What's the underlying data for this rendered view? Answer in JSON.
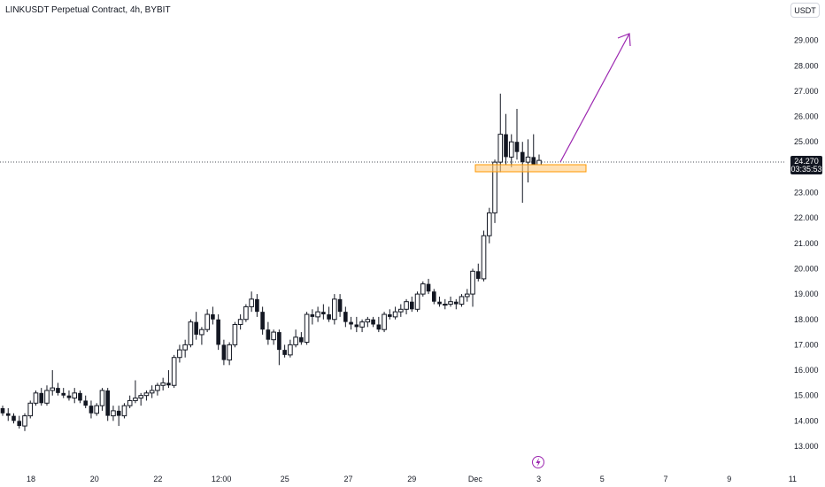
{
  "header": {
    "title": "LINKUSDT Perpetual Contract, 4h, BYBIT",
    "currency_button": "USDT"
  },
  "price_marker": {
    "price": "24.270",
    "countdown": "03:35:53",
    "color": "#131722"
  },
  "colors": {
    "candle": "#131722",
    "zone_fill": "#ffcc80",
    "zone_stroke": "#ff9800",
    "arrow": "#9c27b0",
    "bolt": "#9c27b0"
  },
  "icons": {
    "event_icon": "lightning-bolt-icon"
  },
  "chart_data": {
    "type": "candlestick",
    "symbol": "LINKUSDT",
    "interval": "4h",
    "exchange": "BYBIT",
    "y_range": [
      12.5,
      30.0
    ],
    "y_ticks": [
      "13.000",
      "14.000",
      "15.000",
      "16.000",
      "17.000",
      "18.000",
      "19.000",
      "20.000",
      "21.000",
      "22.000",
      "23.000",
      "24.000",
      "25.000",
      "26.000",
      "27.000",
      "28.000",
      "29.000"
    ],
    "x_ticks": [
      "18",
      "20",
      "22",
      "12:00",
      "25",
      "27",
      "29",
      "Dec",
      "3",
      "5",
      "7",
      "9",
      "11"
    ],
    "grid": false,
    "candles": [
      [
        14.5,
        14.6,
        14.2,
        14.3
      ],
      [
        14.3,
        14.5,
        14.0,
        14.2
      ],
      [
        14.2,
        14.3,
        13.9,
        14.0
      ],
      [
        14.0,
        14.2,
        13.7,
        13.8
      ],
      [
        13.8,
        14.3,
        13.6,
        14.2
      ],
      [
        14.2,
        14.8,
        14.1,
        14.7
      ],
      [
        14.7,
        15.2,
        14.6,
        15.1
      ],
      [
        15.1,
        15.3,
        14.6,
        14.7
      ],
      [
        14.7,
        15.4,
        14.6,
        15.2
      ],
      [
        15.2,
        16.0,
        15.0,
        15.3
      ],
      [
        15.3,
        15.5,
        15.0,
        15.1
      ],
      [
        15.1,
        15.3,
        14.9,
        15.0
      ],
      [
        15.0,
        15.2,
        14.8,
        14.9
      ],
      [
        14.9,
        15.3,
        14.7,
        15.1
      ],
      [
        15.1,
        15.2,
        14.7,
        14.8
      ],
      [
        14.8,
        15.0,
        14.5,
        14.6
      ],
      [
        14.6,
        14.8,
        14.1,
        14.3
      ],
      [
        14.3,
        14.7,
        14.2,
        14.6
      ],
      [
        14.6,
        15.3,
        14.4,
        15.2
      ],
      [
        15.2,
        15.3,
        14.0,
        14.2
      ],
      [
        14.2,
        14.6,
        14.0,
        14.4
      ],
      [
        14.4,
        14.6,
        13.8,
        14.2
      ],
      [
        14.2,
        14.7,
        14.1,
        14.6
      ],
      [
        14.6,
        15.0,
        14.5,
        14.8
      ],
      [
        14.8,
        15.6,
        14.7,
        14.9
      ],
      [
        14.9,
        15.1,
        14.6,
        15.0
      ],
      [
        15.0,
        15.2,
        14.8,
        15.1
      ],
      [
        15.1,
        15.4,
        14.9,
        15.2
      ],
      [
        15.2,
        15.5,
        15.0,
        15.4
      ],
      [
        15.4,
        15.7,
        15.2,
        15.5
      ],
      [
        15.5,
        16.0,
        15.3,
        15.4
      ],
      [
        15.4,
        16.6,
        15.3,
        16.5
      ],
      [
        16.5,
        17.0,
        16.3,
        16.8
      ],
      [
        16.8,
        17.2,
        16.5,
        17.0
      ],
      [
        17.0,
        18.0,
        16.9,
        17.9
      ],
      [
        17.9,
        18.3,
        17.2,
        17.4
      ],
      [
        17.4,
        17.7,
        17.0,
        17.6
      ],
      [
        17.6,
        18.4,
        17.5,
        18.2
      ],
      [
        18.2,
        18.5,
        17.8,
        18.0
      ],
      [
        18.0,
        18.2,
        16.8,
        17.0
      ],
      [
        17.0,
        17.2,
        16.2,
        16.4
      ],
      [
        16.4,
        17.1,
        16.2,
        17.0
      ],
      [
        17.0,
        17.9,
        16.9,
        17.8
      ],
      [
        17.8,
        18.2,
        17.6,
        18.0
      ],
      [
        18.0,
        18.6,
        17.9,
        18.5
      ],
      [
        18.5,
        19.1,
        18.3,
        18.8
      ],
      [
        18.8,
        19.0,
        18.1,
        18.3
      ],
      [
        18.3,
        18.5,
        17.4,
        17.6
      ],
      [
        17.6,
        17.9,
        17.0,
        17.2
      ],
      [
        17.2,
        17.6,
        17.0,
        17.5
      ],
      [
        17.5,
        17.6,
        16.2,
        16.8
      ],
      [
        16.8,
        17.0,
        16.5,
        16.6
      ],
      [
        16.6,
        17.2,
        16.5,
        17.0
      ],
      [
        17.0,
        17.6,
        16.9,
        17.3
      ],
      [
        17.3,
        17.5,
        17.0,
        17.1
      ],
      [
        17.1,
        18.3,
        17.0,
        18.2
      ],
      [
        18.2,
        18.4,
        17.8,
        18.1
      ],
      [
        18.1,
        18.5,
        17.9,
        18.3
      ],
      [
        18.3,
        18.6,
        18.0,
        18.2
      ],
      [
        18.2,
        18.5,
        17.9,
        18.0
      ],
      [
        18.0,
        19.0,
        17.8,
        18.8
      ],
      [
        18.8,
        19.0,
        18.1,
        18.3
      ],
      [
        18.3,
        18.5,
        17.7,
        17.9
      ],
      [
        17.9,
        18.1,
        17.6,
        17.8
      ],
      [
        17.8,
        18.1,
        17.5,
        17.7
      ],
      [
        17.7,
        18.0,
        17.5,
        17.9
      ],
      [
        17.9,
        18.1,
        17.7,
        18.0
      ],
      [
        18.0,
        18.1,
        17.7,
        17.8
      ],
      [
        17.8,
        18.1,
        17.5,
        17.6
      ],
      [
        17.6,
        18.3,
        17.5,
        18.2
      ],
      [
        18.2,
        18.4,
        18.0,
        18.1
      ],
      [
        18.1,
        18.5,
        18.0,
        18.3
      ],
      [
        18.3,
        18.6,
        18.1,
        18.4
      ],
      [
        18.4,
        18.8,
        18.2,
        18.7
      ],
      [
        18.7,
        18.9,
        18.3,
        18.4
      ],
      [
        18.4,
        19.1,
        18.3,
        19.0
      ],
      [
        19.0,
        19.5,
        18.9,
        19.4
      ],
      [
        19.4,
        19.6,
        19.0,
        19.1
      ],
      [
        19.1,
        19.2,
        18.6,
        18.7
      ],
      [
        18.7,
        18.9,
        18.5,
        18.6
      ],
      [
        18.6,
        18.8,
        18.4,
        18.6
      ],
      [
        18.6,
        18.9,
        18.5,
        18.7
      ],
      [
        18.7,
        18.8,
        18.4,
        18.6
      ],
      [
        18.6,
        19.0,
        18.5,
        18.9
      ],
      [
        18.9,
        19.2,
        18.7,
        19.0
      ],
      [
        19.0,
        20.0,
        18.5,
        19.9
      ],
      [
        19.9,
        20.2,
        19.5,
        19.6
      ],
      [
        19.6,
        21.5,
        19.5,
        21.3
      ],
      [
        21.3,
        22.4,
        21.0,
        22.2
      ],
      [
        22.2,
        24.3,
        21.8,
        24.2
      ],
      [
        24.2,
        26.9,
        23.8,
        25.3
      ],
      [
        25.3,
        26.1,
        24.1,
        24.4
      ],
      [
        24.4,
        25.3,
        24.0,
        25.0
      ],
      [
        25.0,
        26.3,
        24.3,
        24.6
      ],
      [
        24.6,
        25.0,
        22.6,
        24.2
      ],
      [
        24.2,
        25.1,
        23.4,
        24.4
      ],
      [
        24.4,
        25.3,
        24.1,
        24.1
      ],
      [
        24.1,
        24.5,
        24.1,
        24.27
      ]
    ]
  }
}
